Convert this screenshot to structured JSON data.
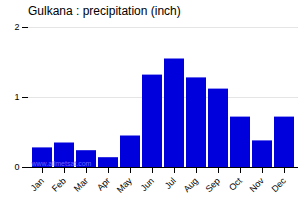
{
  "chart_data": {
    "type": "bar",
    "title": "Gulkana : precipitation (inch)",
    "categories": [
      "Jan",
      "Feb",
      "Mar",
      "Apr",
      "May",
      "Jun",
      "Jul",
      "Aug",
      "Sep",
      "Oct",
      "Nov",
      "Dec"
    ],
    "values": [
      0.28,
      0.35,
      0.24,
      0.14,
      0.45,
      1.32,
      1.55,
      1.28,
      1.12,
      0.72,
      0.38,
      0.72
    ],
    "color": "#0000dd",
    "ylim": [
      0,
      2
    ],
    "yticks": [
      0,
      1,
      2
    ],
    "grid": true,
    "annotations": [
      "www.allmetsat.com"
    ]
  }
}
